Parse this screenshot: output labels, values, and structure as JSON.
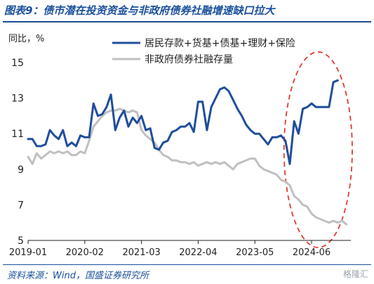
{
  "header": {
    "title": "图表9：债市潜在投资资金与非政府债券社融增速缺口拉大"
  },
  "footer": {
    "source": "资料来源：Wind，国盛证券研究所",
    "watermark": "格隆汇"
  },
  "colors": {
    "brand": "#1a4f9c",
    "series_1": "#1f4e9c",
    "series_2": "#c0c0c0",
    "highlight": "#e03c31"
  },
  "chart_data": {
    "type": "line",
    "ylabel": "同比，%",
    "ylim": [
      5,
      15
    ],
    "yticks": [
      5,
      7,
      9,
      11,
      13,
      15
    ],
    "xlim": [
      "2019-01",
      "2025-03"
    ],
    "xtick_labels": [
      "2019-01",
      "2020-02",
      "2021-03",
      "2022-04",
      "2023-05",
      "2024-06"
    ],
    "legend_position": "top-right",
    "annotation": "red dashed ellipse highlighting 2024-01 to 2025-02",
    "series": [
      {
        "name": "居民存款+货基+债基+理财+保险",
        "points": [
          [
            "2019-01",
            10.7
          ],
          [
            "2019-02",
            10.7
          ],
          [
            "2019-03",
            10.3
          ],
          [
            "2019-04",
            10.3
          ],
          [
            "2019-05",
            10.4
          ],
          [
            "2019-06",
            11.2
          ],
          [
            "2019-07",
            10.9
          ],
          [
            "2019-08",
            10.7
          ],
          [
            "2019-09",
            11.2
          ],
          [
            "2019-10",
            10.3
          ],
          [
            "2019-11",
            10.5
          ],
          [
            "2019-12",
            10.3
          ],
          [
            "2020-01",
            10.9
          ],
          [
            "2020-02",
            10.8
          ],
          [
            "2020-03",
            10.8
          ],
          [
            "2020-04",
            12.7
          ],
          [
            "2020-05",
            12.0
          ],
          [
            "2020-06",
            12.1
          ],
          [
            "2020-07",
            12.5
          ],
          [
            "2020-08",
            13.2
          ],
          [
            "2020-09",
            11.2
          ],
          [
            "2020-10",
            11.9
          ],
          [
            "2020-11",
            12.3
          ],
          [
            "2020-12",
            11.4
          ],
          [
            "2021-01",
            11.9
          ],
          [
            "2021-02",
            11.6
          ],
          [
            "2021-03",
            12.0
          ],
          [
            "2021-04",
            11.2
          ],
          [
            "2021-05",
            11.3
          ],
          [
            "2021-06",
            10.2
          ],
          [
            "2021-07",
            10.1
          ],
          [
            "2021-08",
            10.5
          ],
          [
            "2021-09",
            10.6
          ],
          [
            "2021-10",
            11.1
          ],
          [
            "2021-11",
            11.2
          ],
          [
            "2021-12",
            11.4
          ],
          [
            "2022-01",
            11.4
          ],
          [
            "2022-02",
            11.6
          ],
          [
            "2022-03",
            11.1
          ],
          [
            "2022-04",
            12.8
          ],
          [
            "2022-05",
            12.8
          ],
          [
            "2022-06",
            11.2
          ],
          [
            "2022-07",
            12.5
          ],
          [
            "2022-08",
            13.0
          ],
          [
            "2022-09",
            13.5
          ],
          [
            "2022-10",
            13.6
          ],
          [
            "2022-11",
            13.4
          ],
          [
            "2022-12",
            12.9
          ],
          [
            "2023-01",
            12.4
          ],
          [
            "2023-02",
            12.0
          ],
          [
            "2023-03",
            11.5
          ],
          [
            "2023-04",
            11.2
          ],
          [
            "2023-05",
            11.0
          ],
          [
            "2023-06",
            11.0
          ],
          [
            "2023-07",
            10.7
          ],
          [
            "2023-08",
            10.4
          ],
          [
            "2023-09",
            10.8
          ],
          [
            "2023-10",
            10.8
          ],
          [
            "2023-11",
            10.9
          ],
          [
            "2023-12",
            10.6
          ],
          [
            "2024-01",
            9.3
          ],
          [
            "2024-02",
            11.7
          ],
          [
            "2024-03",
            11.0
          ],
          [
            "2024-04",
            12.4
          ],
          [
            "2024-05",
            12.5
          ],
          [
            "2024-06",
            12.7
          ],
          [
            "2024-07",
            12.5
          ],
          [
            "2024-08",
            12.5
          ],
          [
            "2024-09",
            12.5
          ],
          [
            "2024-10",
            12.5
          ],
          [
            "2024-11",
            13.9
          ],
          [
            "2024-12",
            14.0
          ]
        ]
      },
      {
        "name": "非政府债券社融存量",
        "points": [
          [
            "2019-01",
            9.7
          ],
          [
            "2019-02",
            9.3
          ],
          [
            "2019-03",
            9.9
          ],
          [
            "2019-04",
            9.6
          ],
          [
            "2019-05",
            9.8
          ],
          [
            "2019-06",
            10.0
          ],
          [
            "2019-07",
            9.9
          ],
          [
            "2019-08",
            10.0
          ],
          [
            "2019-09",
            9.9
          ],
          [
            "2019-10",
            10.0
          ],
          [
            "2019-11",
            9.8
          ],
          [
            "2019-12",
            9.8
          ],
          [
            "2020-01",
            10.0
          ],
          [
            "2020-02",
            9.9
          ],
          [
            "2020-03",
            10.6
          ],
          [
            "2020-04",
            11.4
          ],
          [
            "2020-05",
            11.7
          ],
          [
            "2020-06",
            12.0
          ],
          [
            "2020-07",
            12.2
          ],
          [
            "2020-08",
            12.3
          ],
          [
            "2020-09",
            12.3
          ],
          [
            "2020-10",
            12.4
          ],
          [
            "2020-11",
            12.3
          ],
          [
            "2020-12",
            12.2
          ],
          [
            "2021-01",
            12.3
          ],
          [
            "2021-02",
            12.2
          ],
          [
            "2021-03",
            11.2
          ],
          [
            "2021-04",
            10.9
          ],
          [
            "2021-05",
            10.7
          ],
          [
            "2021-06",
            10.5
          ],
          [
            "2021-07",
            10.1
          ],
          [
            "2021-08",
            9.8
          ],
          [
            "2021-09",
            9.7
          ],
          [
            "2021-10",
            9.5
          ],
          [
            "2021-11",
            9.5
          ],
          [
            "2021-12",
            9.4
          ],
          [
            "2022-01",
            9.4
          ],
          [
            "2022-02",
            9.3
          ],
          [
            "2022-03",
            9.4
          ],
          [
            "2022-04",
            9.2
          ],
          [
            "2022-05",
            9.3
          ],
          [
            "2022-06",
            9.4
          ],
          [
            "2022-07",
            9.3
          ],
          [
            "2022-08",
            9.4
          ],
          [
            "2022-09",
            9.3
          ],
          [
            "2022-10",
            9.4
          ],
          [
            "2022-11",
            9.2
          ],
          [
            "2022-12",
            9.0
          ],
          [
            "2023-01",
            9.3
          ],
          [
            "2023-02",
            9.4
          ],
          [
            "2023-03",
            9.5
          ],
          [
            "2023-04",
            9.6
          ],
          [
            "2023-05",
            9.6
          ],
          [
            "2023-06",
            9.2
          ],
          [
            "2023-07",
            9.0
          ],
          [
            "2023-08",
            8.9
          ],
          [
            "2023-09",
            8.8
          ],
          [
            "2023-10",
            8.7
          ],
          [
            "2023-11",
            8.4
          ],
          [
            "2023-12",
            8.3
          ],
          [
            "2024-01",
            8.1
          ],
          [
            "2024-02",
            7.5
          ],
          [
            "2024-03",
            7.3
          ],
          [
            "2024-04",
            7.0
          ],
          [
            "2024-05",
            6.9
          ],
          [
            "2024-06",
            6.5
          ],
          [
            "2024-07",
            6.3
          ],
          [
            "2024-08",
            6.2
          ],
          [
            "2024-09",
            6.1
          ],
          [
            "2024-10",
            6.0
          ],
          [
            "2024-11",
            6.1
          ],
          [
            "2024-12",
            6.0
          ],
          [
            "2025-01",
            6.1
          ],
          [
            "2025-02",
            5.9
          ]
        ]
      }
    ]
  }
}
